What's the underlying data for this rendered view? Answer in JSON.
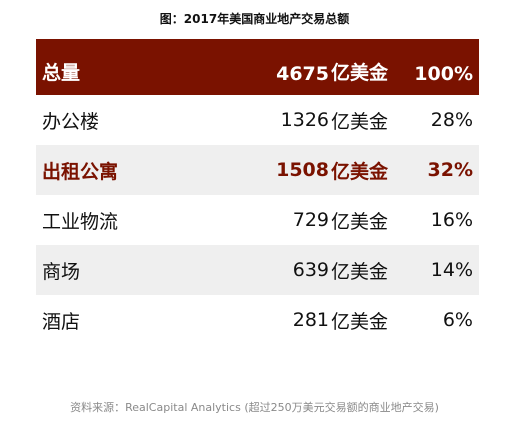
{
  "title": "图：2017年美国商业地产交易总额",
  "unit": "亿美金",
  "rows": [
    {
      "name": "总量",
      "value": "4675",
      "pct": "100%"
    },
    {
      "name": "办公楼",
      "value": "1326",
      "pct": "28%"
    },
    {
      "name": "出租公寓",
      "value": "1508",
      "pct": "32%"
    },
    {
      "name": "工业物流",
      "value": "729",
      "pct": "16%"
    },
    {
      "name": "商场",
      "value": "639",
      "pct": "14%"
    },
    {
      "name": "酒店",
      "value": "281",
      "pct": "6%"
    }
  ],
  "source": "资料来源：RealCapital Analytics (超过250万美元交易额的商业地产交易)",
  "colors": {
    "accent": "#7a1200",
    "shade": "#efefef"
  }
}
